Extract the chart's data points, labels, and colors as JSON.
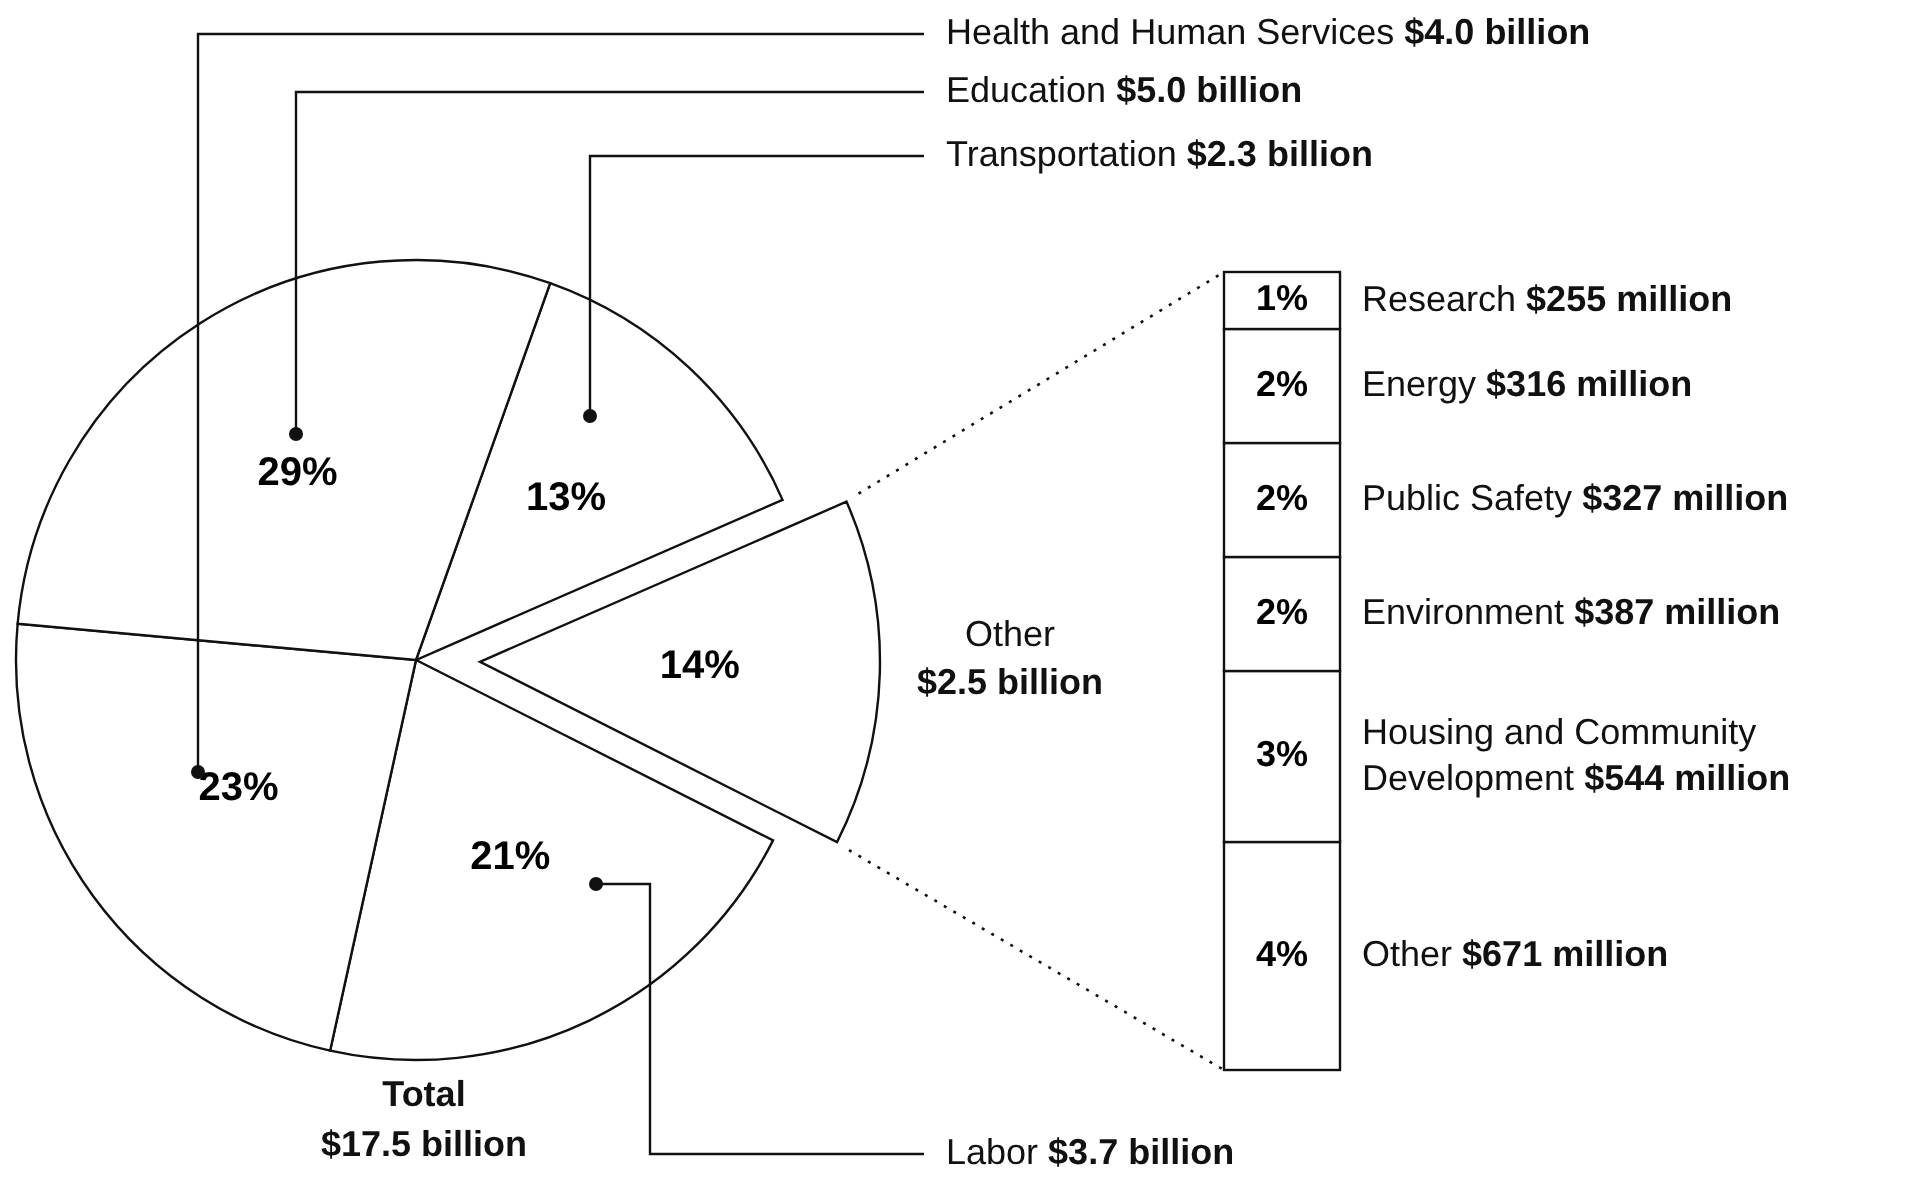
{
  "chart_data": [
    {
      "type": "pie",
      "categories": [
        "Transportation $2.3 billion",
        "Other $2.5 billion",
        "Labor $3.7 billion",
        "Health and Human Services $4.0 billion",
        "Education $5.0 billion"
      ],
      "values": [
        13,
        14,
        21,
        23,
        29
      ],
      "colors": [
        "#ffffff",
        "#ffffff",
        "#ffffff",
        "#ffffff",
        "#ffffff"
      ],
      "value_labels": [
        "13%",
        "14%",
        "21%",
        "23%",
        "29%"
      ],
      "annotations": [
        "Total $17.5 billion"
      ]
    },
    {
      "type": "bar",
      "stacked": true,
      "categories": [
        null
      ],
      "series": [
        {
          "name": "Other $671 million",
          "color": "#ffffff",
          "values": [
            4
          ],
          "value_labels": [
            "4%"
          ]
        },
        {
          "name": "Housing and Community Development $544 million",
          "color": "#ffffff",
          "values": [
            3
          ],
          "value_labels": [
            "3%"
          ]
        },
        {
          "name": "Environment $387 million",
          "color": "#ffffff",
          "values": [
            2
          ],
          "value_labels": [
            "2%"
          ]
        },
        {
          "name": "Public Safety $327 million",
          "color": "#ffffff",
          "values": [
            2
          ],
          "value_labels": [
            "2%"
          ]
        },
        {
          "name": "Energy $316 million",
          "color": "#ffffff",
          "values": [
            2
          ],
          "value_labels": [
            "2%"
          ]
        },
        {
          "name": "Research $255 million",
          "color": "#ffffff",
          "values": [
            1
          ],
          "value_labels": [
            "1%"
          ]
        }
      ]
    }
  ]
}
